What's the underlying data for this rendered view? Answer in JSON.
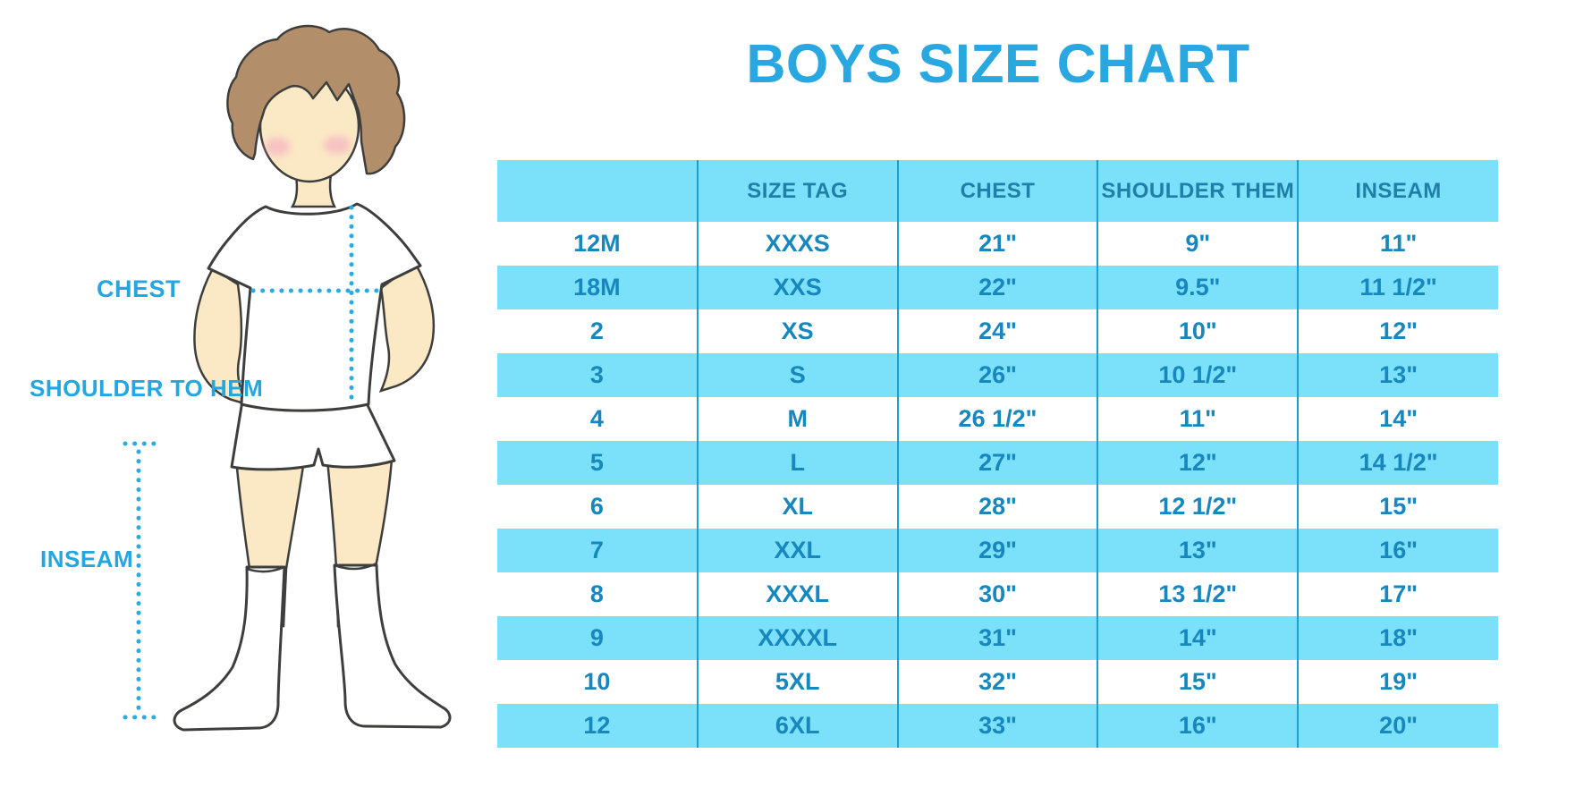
{
  "title": "BOYS SIZE CHART",
  "measurement_labels": {
    "chest": "CHEST",
    "shoulder_to_hem": "SHOULDER TO HEM",
    "inseam": "INSEAM"
  },
  "figure": {
    "description_icons": [
      "boy-illustration",
      "chest-dotted-line",
      "shoulder-to-hem-dotted-line",
      "inseam-dotted-line"
    ]
  },
  "chart_data": {
    "type": "table",
    "title": "BOYS SIZE CHART",
    "columns": [
      "",
      "SIZE TAG",
      "CHEST",
      "SHOULDER THEM",
      "INSEAM"
    ],
    "rows": [
      [
        "12M",
        "XXXS",
        "21\"",
        "9\"",
        "11\""
      ],
      [
        "18M",
        "XXS",
        "22\"",
        "9.5\"",
        "11 1/2\""
      ],
      [
        "2",
        "XS",
        "24\"",
        "10\"",
        "12\""
      ],
      [
        "3",
        "S",
        "26\"",
        "10 1/2\"",
        "13\""
      ],
      [
        "4",
        "M",
        "26 1/2\"",
        "11\"",
        "14\""
      ],
      [
        "5",
        "L",
        "27\"",
        "12\"",
        "14 1/2\""
      ],
      [
        "6",
        "XL",
        "28\"",
        "12 1/2\"",
        "15\""
      ],
      [
        "7",
        "XXL",
        "29\"",
        "13\"",
        "16\""
      ],
      [
        "8",
        "XXXL",
        "30\"",
        "13 1/2\"",
        "17\""
      ],
      [
        "9",
        "XXXXL",
        "31\"",
        "14\"",
        "18\""
      ],
      [
        "10",
        "5XL",
        "32\"",
        "15\"",
        "19\""
      ],
      [
        "12",
        "6XL",
        "33\"",
        "16\"",
        "20\""
      ]
    ],
    "stripe_pattern": "header cyan, body rows alternate white/cyan starting with white",
    "grid": "vertical column separator lines only"
  },
  "colors": {
    "title_blue": "#29A7E0",
    "label_blue": "#24A7E1",
    "stripe_cyan": "#7BE0FA",
    "header_text": "#207FA9",
    "cell_text": "#1787BD",
    "column_line": "#189FD4",
    "dotted_line": "#2BAAE3",
    "skin": "#FBE8C5",
    "hair": "#B28F6A",
    "cheek": "#F4A9C0",
    "outline": "#3E3E3C"
  }
}
